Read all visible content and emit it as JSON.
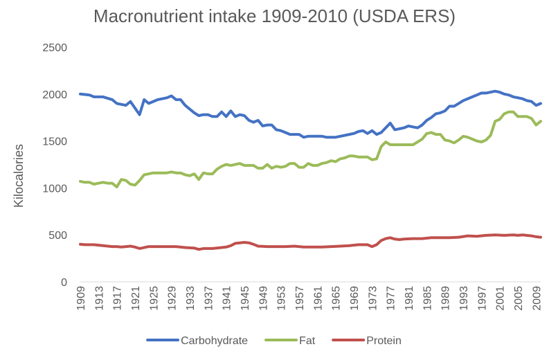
{
  "chart_data": {
    "type": "line",
    "title": "Macronutrient intake 1909-2010 (USDA ERS)",
    "xlabel": "",
    "ylabel": "Kilocalories",
    "ylim": [
      0,
      2500
    ],
    "yticks": [
      0,
      500,
      1000,
      1500,
      2000,
      2500
    ],
    "xlim": [
      1909,
      2010
    ],
    "xtick_labels": [
      "1909",
      "1913",
      "1917",
      "1921",
      "1925",
      "1929",
      "1933",
      "1937",
      "1941",
      "1945",
      "1949",
      "1953",
      "1957",
      "1961",
      "1965",
      "1969",
      "1973",
      "1977",
      "1981",
      "1985",
      "1989",
      "1993",
      "1997",
      "2001",
      "2005",
      "2009"
    ],
    "grid": false,
    "legend_position": "bottom",
    "series": [
      {
        "name": "Carbohydrate",
        "color": "#4472C4",
        "points": [
          [
            1909,
            2000
          ],
          [
            1911,
            1990
          ],
          [
            1912,
            1970
          ],
          [
            1914,
            1970
          ],
          [
            1916,
            1940
          ],
          [
            1917,
            1900
          ],
          [
            1919,
            1880
          ],
          [
            1920,
            1920
          ],
          [
            1922,
            1780
          ],
          [
            1923,
            1940
          ],
          [
            1924,
            1900
          ],
          [
            1926,
            1940
          ],
          [
            1928,
            1960
          ],
          [
            1929,
            1980
          ],
          [
            1930,
            1940
          ],
          [
            1931,
            1940
          ],
          [
            1932,
            1880
          ],
          [
            1934,
            1800
          ],
          [
            1935,
            1770
          ],
          [
            1936,
            1780
          ],
          [
            1937,
            1780
          ],
          [
            1938,
            1760
          ],
          [
            1939,
            1760
          ],
          [
            1940,
            1810
          ],
          [
            1941,
            1760
          ],
          [
            1942,
            1820
          ],
          [
            1943,
            1760
          ],
          [
            1944,
            1780
          ],
          [
            1945,
            1770
          ],
          [
            1946,
            1720
          ],
          [
            1947,
            1700
          ],
          [
            1948,
            1720
          ],
          [
            1949,
            1660
          ],
          [
            1950,
            1670
          ],
          [
            1951,
            1670
          ],
          [
            1952,
            1620
          ],
          [
            1953,
            1610
          ],
          [
            1954,
            1590
          ],
          [
            1955,
            1570
          ],
          [
            1957,
            1570
          ],
          [
            1958,
            1540
          ],
          [
            1959,
            1550
          ],
          [
            1961,
            1550
          ],
          [
            1962,
            1550
          ],
          [
            1963,
            1540
          ],
          [
            1965,
            1540
          ],
          [
            1967,
            1560
          ],
          [
            1969,
            1580
          ],
          [
            1970,
            1600
          ],
          [
            1971,
            1610
          ],
          [
            1972,
            1580
          ],
          [
            1973,
            1610
          ],
          [
            1974,
            1570
          ],
          [
            1975,
            1590
          ],
          [
            1976,
            1640
          ],
          [
            1977,
            1690
          ],
          [
            1978,
            1620
          ],
          [
            1979,
            1630
          ],
          [
            1980,
            1640
          ],
          [
            1981,
            1660
          ],
          [
            1982,
            1650
          ],
          [
            1983,
            1640
          ],
          [
            1984,
            1670
          ],
          [
            1985,
            1720
          ],
          [
            1986,
            1750
          ],
          [
            1987,
            1790
          ],
          [
            1988,
            1800
          ],
          [
            1989,
            1820
          ],
          [
            1990,
            1870
          ],
          [
            1991,
            1870
          ],
          [
            1992,
            1900
          ],
          [
            1993,
            1930
          ],
          [
            1994,
            1950
          ],
          [
            1995,
            1970
          ],
          [
            1996,
            1990
          ],
          [
            1997,
            2010
          ],
          [
            1998,
            2010
          ],
          [
            1999,
            2020
          ],
          [
            2000,
            2030
          ],
          [
            2001,
            2020
          ],
          [
            2002,
            2000
          ],
          [
            2003,
            1990
          ],
          [
            2004,
            1970
          ],
          [
            2005,
            1960
          ],
          [
            2006,
            1950
          ],
          [
            2007,
            1930
          ],
          [
            2008,
            1920
          ],
          [
            2009,
            1880
          ],
          [
            2010,
            1900
          ]
        ]
      },
      {
        "name": "Fat",
        "color": "#9BBB59",
        "points": [
          [
            1909,
            1070
          ],
          [
            1910,
            1060
          ],
          [
            1911,
            1060
          ],
          [
            1912,
            1040
          ],
          [
            1913,
            1050
          ],
          [
            1914,
            1060
          ],
          [
            1915,
            1050
          ],
          [
            1916,
            1050
          ],
          [
            1917,
            1010
          ],
          [
            1918,
            1090
          ],
          [
            1919,
            1080
          ],
          [
            1920,
            1040
          ],
          [
            1921,
            1030
          ],
          [
            1922,
            1080
          ],
          [
            1923,
            1140
          ],
          [
            1924,
            1150
          ],
          [
            1925,
            1160
          ],
          [
            1926,
            1160
          ],
          [
            1927,
            1160
          ],
          [
            1928,
            1160
          ],
          [
            1929,
            1170
          ],
          [
            1930,
            1160
          ],
          [
            1931,
            1160
          ],
          [
            1932,
            1140
          ],
          [
            1933,
            1130
          ],
          [
            1934,
            1150
          ],
          [
            1935,
            1090
          ],
          [
            1936,
            1160
          ],
          [
            1937,
            1150
          ],
          [
            1938,
            1150
          ],
          [
            1939,
            1200
          ],
          [
            1940,
            1230
          ],
          [
            1941,
            1250
          ],
          [
            1942,
            1240
          ],
          [
            1943,
            1250
          ],
          [
            1944,
            1260
          ],
          [
            1945,
            1240
          ],
          [
            1946,
            1240
          ],
          [
            1947,
            1240
          ],
          [
            1948,
            1210
          ],
          [
            1949,
            1210
          ],
          [
            1950,
            1250
          ],
          [
            1951,
            1210
          ],
          [
            1952,
            1230
          ],
          [
            1953,
            1220
          ],
          [
            1954,
            1230
          ],
          [
            1955,
            1260
          ],
          [
            1956,
            1260
          ],
          [
            1957,
            1220
          ],
          [
            1958,
            1220
          ],
          [
            1959,
            1260
          ],
          [
            1960,
            1240
          ],
          [
            1961,
            1240
          ],
          [
            1962,
            1260
          ],
          [
            1963,
            1270
          ],
          [
            1964,
            1290
          ],
          [
            1965,
            1280
          ],
          [
            1966,
            1310
          ],
          [
            1967,
            1320
          ],
          [
            1968,
            1340
          ],
          [
            1969,
            1340
          ],
          [
            1970,
            1330
          ],
          [
            1971,
            1330
          ],
          [
            1972,
            1330
          ],
          [
            1973,
            1300
          ],
          [
            1974,
            1310
          ],
          [
            1975,
            1440
          ],
          [
            1976,
            1490
          ],
          [
            1977,
            1460
          ],
          [
            1978,
            1460
          ],
          [
            1979,
            1460
          ],
          [
            1980,
            1460
          ],
          [
            1981,
            1460
          ],
          [
            1982,
            1460
          ],
          [
            1983,
            1490
          ],
          [
            1984,
            1520
          ],
          [
            1985,
            1580
          ],
          [
            1986,
            1590
          ],
          [
            1987,
            1570
          ],
          [
            1988,
            1570
          ],
          [
            1989,
            1510
          ],
          [
            1990,
            1500
          ],
          [
            1991,
            1480
          ],
          [
            1992,
            1510
          ],
          [
            1993,
            1550
          ],
          [
            1994,
            1540
          ],
          [
            1995,
            1520
          ],
          [
            1996,
            1500
          ],
          [
            1997,
            1490
          ],
          [
            1998,
            1510
          ],
          [
            1999,
            1560
          ],
          [
            2000,
            1710
          ],
          [
            2001,
            1730
          ],
          [
            2002,
            1790
          ],
          [
            2003,
            1810
          ],
          [
            2004,
            1810
          ],
          [
            2005,
            1760
          ],
          [
            2006,
            1760
          ],
          [
            2007,
            1760
          ],
          [
            2008,
            1740
          ],
          [
            2009,
            1670
          ],
          [
            2010,
            1710
          ]
        ]
      },
      {
        "name": "Protein",
        "color": "#C0504D",
        "points": [
          [
            1909,
            400
          ],
          [
            1910,
            395
          ],
          [
            1912,
            395
          ],
          [
            1914,
            385
          ],
          [
            1916,
            375
          ],
          [
            1917,
            375
          ],
          [
            1918,
            370
          ],
          [
            1920,
            380
          ],
          [
            1921,
            370
          ],
          [
            1922,
            355
          ],
          [
            1924,
            375
          ],
          [
            1926,
            375
          ],
          [
            1928,
            375
          ],
          [
            1930,
            375
          ],
          [
            1932,
            365
          ],
          [
            1934,
            360
          ],
          [
            1935,
            345
          ],
          [
            1936,
            355
          ],
          [
            1938,
            355
          ],
          [
            1940,
            365
          ],
          [
            1941,
            370
          ],
          [
            1942,
            385
          ],
          [
            1943,
            410
          ],
          [
            1944,
            415
          ],
          [
            1945,
            420
          ],
          [
            1946,
            415
          ],
          [
            1947,
            400
          ],
          [
            1948,
            380
          ],
          [
            1950,
            375
          ],
          [
            1952,
            375
          ],
          [
            1954,
            375
          ],
          [
            1956,
            380
          ],
          [
            1958,
            370
          ],
          [
            1960,
            370
          ],
          [
            1962,
            370
          ],
          [
            1964,
            375
          ],
          [
            1966,
            380
          ],
          [
            1968,
            385
          ],
          [
            1970,
            395
          ],
          [
            1972,
            395
          ],
          [
            1973,
            375
          ],
          [
            1974,
            395
          ],
          [
            1975,
            440
          ],
          [
            1976,
            460
          ],
          [
            1977,
            470
          ],
          [
            1978,
            455
          ],
          [
            1979,
            450
          ],
          [
            1980,
            455
          ],
          [
            1982,
            460
          ],
          [
            1984,
            460
          ],
          [
            1986,
            470
          ],
          [
            1988,
            470
          ],
          [
            1990,
            470
          ],
          [
            1992,
            475
          ],
          [
            1994,
            490
          ],
          [
            1996,
            485
          ],
          [
            1998,
            495
          ],
          [
            2000,
            500
          ],
          [
            2002,
            495
          ],
          [
            2004,
            500
          ],
          [
            2005,
            495
          ],
          [
            2006,
            500
          ],
          [
            2008,
            490
          ],
          [
            2009,
            480
          ],
          [
            2010,
            475
          ]
        ]
      }
    ]
  }
}
